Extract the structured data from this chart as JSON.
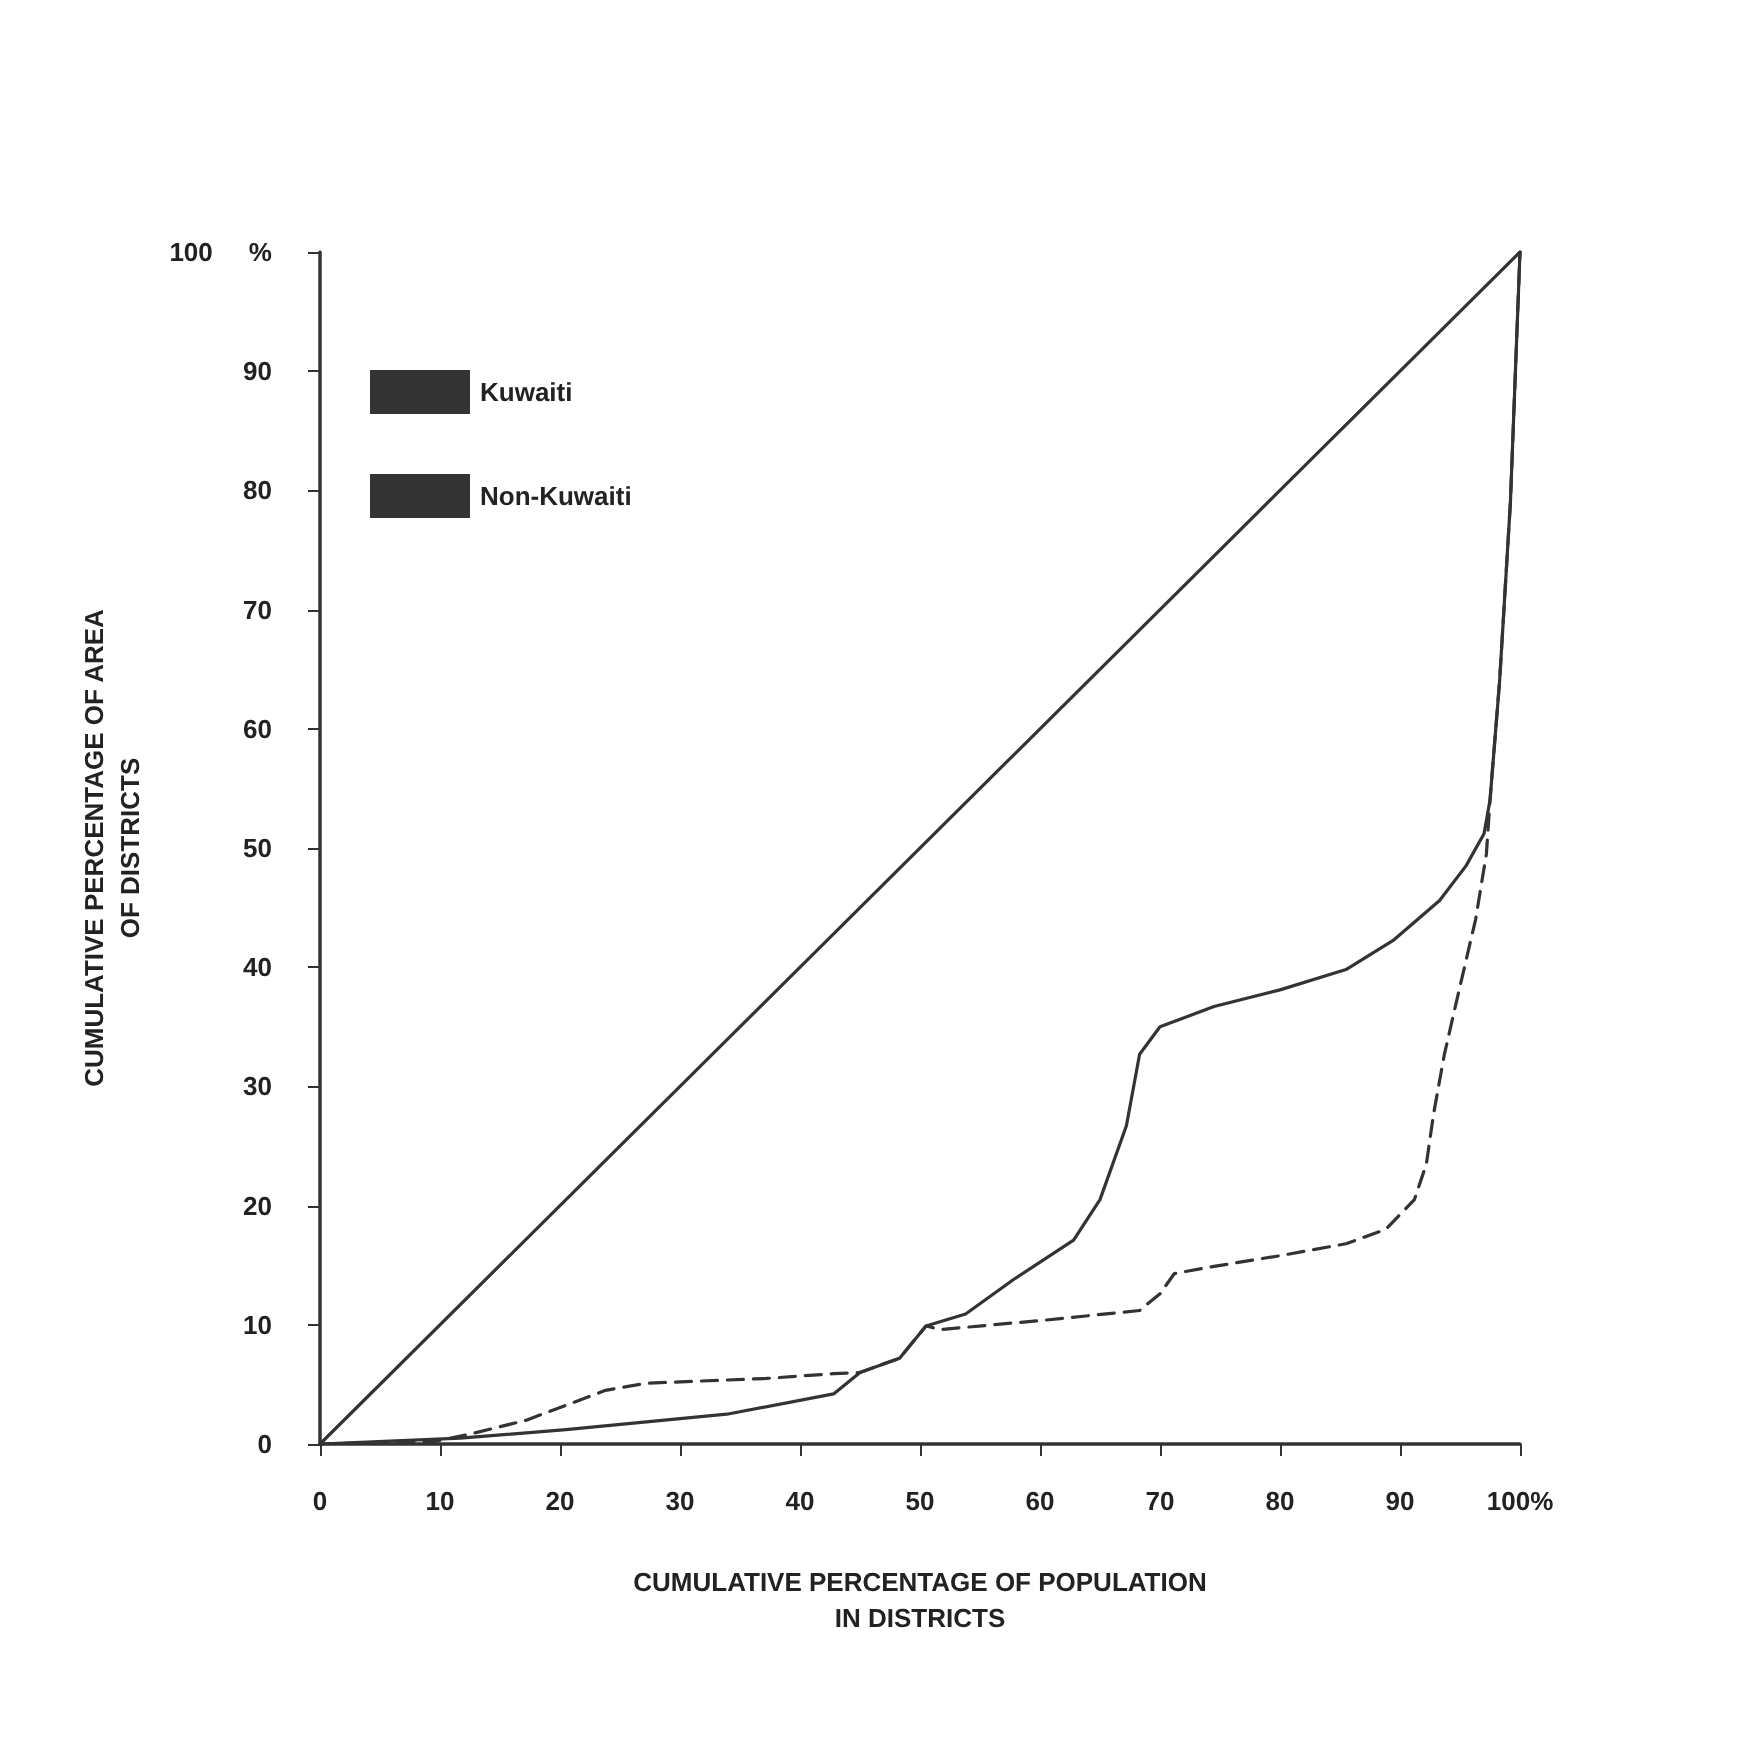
{
  "chart_data": {
    "type": "line",
    "xlabel": "CUMULATIVE PERCENTAGE OF POPULATION\nIN DISTRICTS",
    "ylabel": "CUMULATIVE PERCENTAGE OF AREA\nOF DISTRICTS",
    "xlim": [
      0,
      100
    ],
    "ylim": [
      0,
      100
    ],
    "xticks": [
      0,
      10,
      20,
      30,
      40,
      50,
      60,
      70,
      80,
      90,
      {
        "value": 100,
        "label": "100%"
      }
    ],
    "yticks": [
      0,
      10,
      20,
      30,
      40,
      50,
      60,
      70,
      80,
      90,
      {
        "value": 100,
        "label": "100     %"
      }
    ],
    "grid": false,
    "legend": "top left",
    "series": [
      {
        "color": "#333333",
        "line_style": "solid",
        "x": [
          0,
          100
        ],
        "values": [
          0,
          100
        ]
      },
      {
        "name": "Kuwaiti",
        "color": "#333333",
        "line_style": "solid",
        "x": [
          0,
          11.7,
          20.5,
          33.9,
          42.8,
          45,
          48.3,
          50.5,
          53.8,
          57.8,
          62.8,
          65,
          67.2,
          68.3,
          70,
          74.5,
          80,
          85.5,
          89.5,
          93.3,
          95.5,
          97,
          97.5,
          98.3,
          99.2,
          100
        ],
        "values": [
          0,
          0.5,
          1.2,
          2.5,
          4.2,
          6,
          7.2,
          9.9,
          10.9,
          13.8,
          17.1,
          20.5,
          26.7,
          32.7,
          35,
          36.7,
          38.1,
          39.8,
          42.3,
          45.6,
          48.5,
          51.2,
          54,
          64,
          79,
          100
        ]
      },
      {
        "name": "Non-Kuwaiti",
        "color": "#333333",
        "line_style": "dashed",
        "x": [
          0,
          9.5,
          12.8,
          17.2,
          23.8,
          27.2,
          37.2,
          42.8,
          45,
          48.3,
          50.5,
          51.7,
          60.5,
          68.3,
          70,
          71.2,
          74.5,
          80,
          85.5,
          88.8,
          91.2,
          92.2,
          92.8,
          93.7,
          95,
          96.3,
          97.2,
          97.5,
          98.3,
          99.2,
          100
        ],
        "values": [
          0,
          0.2,
          0.9,
          2,
          4.5,
          5.1,
          5.5,
          5.9,
          6,
          7.2,
          9.9,
          9.6,
          10.4,
          11.2,
          12.6,
          14.3,
          14.9,
          15.8,
          16.8,
          18,
          20.5,
          23.5,
          27.7,
          32.7,
          38.4,
          44,
          49.5,
          54,
          64,
          79,
          100
        ]
      }
    ]
  }
}
